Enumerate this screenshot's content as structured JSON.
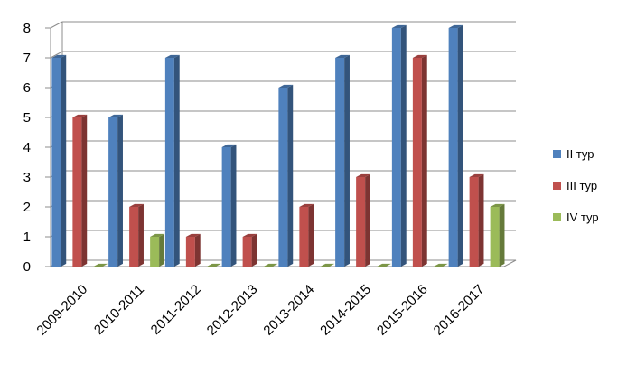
{
  "chart_data": {
    "type": "bar",
    "categories": [
      "2009-2010",
      "2010-2011",
      "2011-2012",
      "2012-2013",
      "2013-2014",
      "2014-2015",
      "2015-2016",
      "2016-2017"
    ],
    "series": [
      {
        "name": "II тур",
        "values": [
          7,
          5,
          7,
          4,
          6,
          7,
          8,
          8
        ],
        "color": "#4F81BD"
      },
      {
        "name": "III тур",
        "values": [
          5,
          2,
          1,
          1,
          2,
          3,
          7,
          3
        ],
        "color": "#C0504D"
      },
      {
        "name": "IV тур",
        "values": [
          0,
          1,
          0,
          0,
          0,
          0,
          0,
          2
        ],
        "color": "#9BBB59"
      }
    ],
    "ylim": [
      0,
      8
    ],
    "y_ticks": [
      "0",
      "1",
      "2",
      "3",
      "4",
      "5",
      "6",
      "7",
      "8"
    ],
    "grid": true,
    "legend_position": "right",
    "three_d": true
  }
}
